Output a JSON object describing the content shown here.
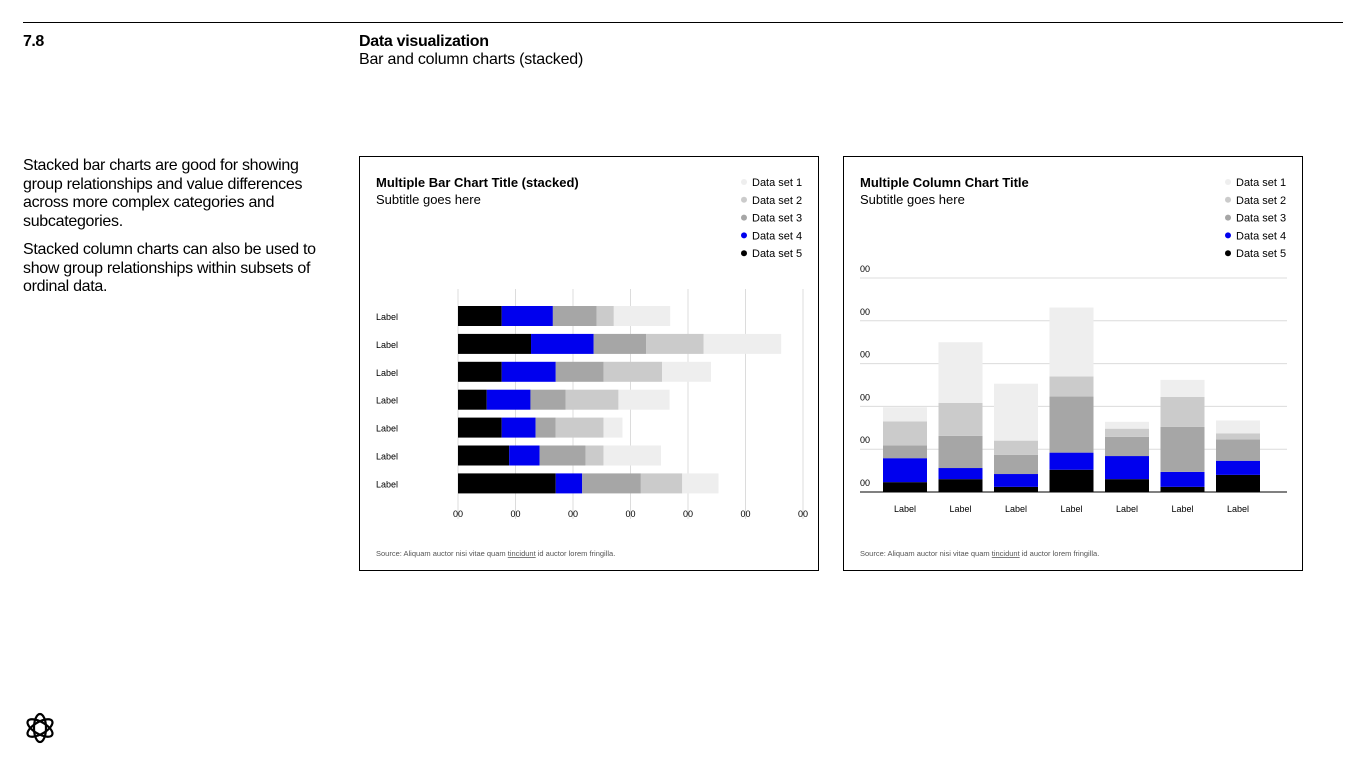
{
  "header": {
    "section": "7.8",
    "title": "Data visualization",
    "subtitle": "Bar and column charts (stacked)"
  },
  "body": {
    "paragraph_1": "Stacked bar charts are good for showing group relationships and value differences across more complex categories and subcategories.",
    "paragraph_2": "Stacked column charts can also be used to show group relationships within subsets of ordinal data."
  },
  "logo": {
    "icon": "openai-logo-icon"
  },
  "chart_data": [
    {
      "type": "bar",
      "orientation": "horizontal",
      "stacked": true,
      "title": "Multiple Bar Chart Title (stacked)",
      "subtitle": "Subtitle goes here",
      "legend_position": "top-right",
      "categories": [
        "Label",
        "Label",
        "Label",
        "Label",
        "Label",
        "Label",
        "Label"
      ],
      "x_tick_labels": [
        "00",
        "00",
        "00",
        "00",
        "00",
        "00",
        "00"
      ],
      "xlim": [
        0,
        6
      ],
      "grid": true,
      "series": [
        {
          "name": "Data set 5",
          "color": "#000000",
          "values": [
            0.76,
            1.27,
            0.76,
            0.5,
            0.76,
            0.89,
            1.7
          ]
        },
        {
          "name": "Data set 4",
          "color": "#0000ee",
          "values": [
            0.89,
            1.09,
            0.94,
            0.76,
            0.59,
            0.53,
            0.46
          ]
        },
        {
          "name": "Data set 3",
          "color": "#a6a6a6",
          "values": [
            0.76,
            0.91,
            0.83,
            0.61,
            0.35,
            0.8,
            1.02
          ]
        },
        {
          "name": "Data set 2",
          "color": "#cbcbcb",
          "values": [
            0.3,
            1.0,
            1.02,
            0.92,
            0.83,
            0.31,
            0.72
          ]
        },
        {
          "name": "Data set 1",
          "color": "#eeeeee",
          "values": [
            0.98,
            1.35,
            0.85,
            0.89,
            0.33,
            1.0,
            0.63
          ]
        }
      ],
      "source": {
        "prefix": "Source: Aliquam auctor nisi vitae quam ",
        "link": "tincidunt",
        "suffix": " id auctor lorem fringilla."
      }
    },
    {
      "type": "bar",
      "orientation": "vertical",
      "stacked": true,
      "title": "Multiple Column Chart Title",
      "subtitle": "Subtitle goes here",
      "legend_position": "top-right",
      "categories": [
        "Label",
        "Label",
        "Label",
        "Label",
        "Label",
        "Label",
        "Label"
      ],
      "y_tick_labels": [
        "00",
        "00",
        "00",
        "00",
        "00",
        "00"
      ],
      "ylim": [
        0,
        5
      ],
      "grid": true,
      "series": [
        {
          "name": "Data set 5",
          "color": "#000000",
          "values": [
            0.23,
            0.3,
            0.12,
            0.52,
            0.3,
            0.12,
            0.4
          ]
        },
        {
          "name": "Data set 4",
          "color": "#0000ee",
          "values": [
            0.56,
            0.26,
            0.3,
            0.4,
            0.54,
            0.35,
            0.33
          ]
        },
        {
          "name": "Data set 3",
          "color": "#a6a6a6",
          "values": [
            0.3,
            0.75,
            0.45,
            1.31,
            0.45,
            1.05,
            0.5
          ]
        },
        {
          "name": "Data set 2",
          "color": "#cbcbcb",
          "values": [
            0.56,
            0.77,
            0.33,
            0.47,
            0.19,
            0.7,
            0.14
          ]
        },
        {
          "name": "Data set 1",
          "color": "#eeeeee",
          "values": [
            0.33,
            1.42,
            1.33,
            1.61,
            0.16,
            0.4,
            0.3
          ]
        }
      ],
      "source": {
        "prefix": "Source: Aliquam auctor nisi vitae quam ",
        "link": "tincidunt",
        "suffix": " id auctor lorem fringilla."
      }
    }
  ]
}
